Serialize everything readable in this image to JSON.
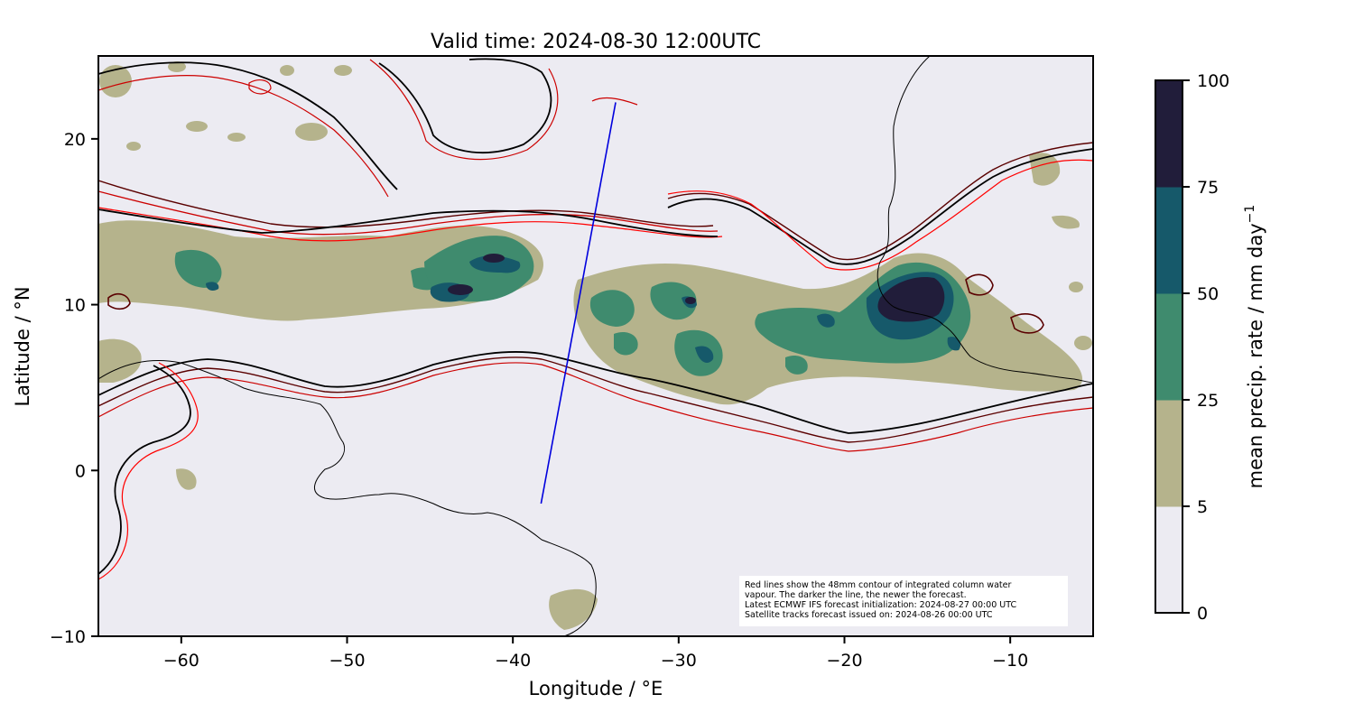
{
  "map": {
    "title": "Valid time: 2024-08-30 12:00UTC",
    "xlabel": "Longitude / °E",
    "ylabel": "Latitude / °N",
    "xlim": [
      -65,
      -5
    ],
    "ylim": [
      -10,
      25
    ],
    "xticks": [
      -60,
      -50,
      -40,
      -30,
      -20,
      -10
    ],
    "yticks": [
      -10,
      0,
      10,
      20
    ],
    "xtick_labels": [
      "−60",
      "−50",
      "−40",
      "−30",
      "−20",
      "−10"
    ],
    "ytick_labels": [
      "−10",
      "0",
      "10",
      "20"
    ],
    "background_color": "#ecebf2",
    "coastline_color": "#000000",
    "satellite_track": {
      "color": "#0000dd",
      "start": [
        -38.3,
        -2
      ],
      "end": [
        -33.8,
        22.2
      ]
    }
  },
  "colorbar": {
    "label": "mean precip. rate / mm day",
    "label_sup": "−1",
    "levels": [
      0,
      5,
      25,
      50,
      75,
      100
    ],
    "tick_labels": [
      "0",
      "5",
      "25",
      "50",
      "75",
      "100"
    ],
    "colors": [
      "#ecebf2",
      "#b5b38c",
      "#3f8b6e",
      "#16596a",
      "#211d3a"
    ]
  },
  "annotation": {
    "lines": [
      "Red lines show the 48mm contour of integrated column water",
      "vapour. The darker the line, the newer the forecast.",
      "Latest ECMWF IFS forecast initialization: 2024-08-27 00:00 UTC",
      "Satellite tracks forecast issued on: 2024-08-26 00:00 UTC"
    ]
  },
  "legend_colors": {
    "iwv_contours": [
      "#ff0000",
      "#cc0000",
      "#5a0000",
      "#000000"
    ]
  }
}
